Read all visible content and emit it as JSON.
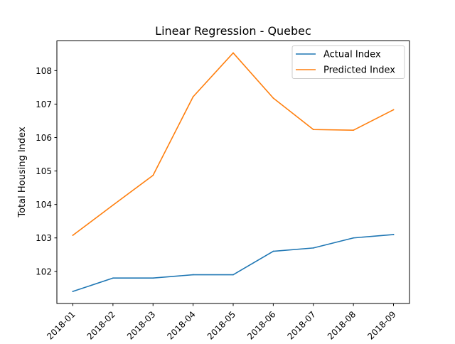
{
  "chart_data": {
    "type": "line",
    "title": "Linear Regression - Quebec",
    "xlabel": "",
    "ylabel": "Total Housing Index",
    "categories": [
      "2018-01",
      "2018-02",
      "2018-03",
      "2018-04",
      "2018-05",
      "2018-06",
      "2018-07",
      "2018-08",
      "2018-09"
    ],
    "series": [
      {
        "name": "Actual Index",
        "color": "#1f77b4",
        "values": [
          101.4,
          101.8,
          101.8,
          101.9,
          101.9,
          102.6,
          102.7,
          103.0,
          103.1
        ]
      },
      {
        "name": "Predicted Index",
        "color": "#ff7f0e",
        "values": [
          103.08,
          103.98,
          104.87,
          107.22,
          108.53,
          107.18,
          106.24,
          106.22,
          106.83
        ]
      }
    ],
    "yticks": [
      102,
      103,
      104,
      105,
      106,
      107,
      108
    ],
    "ylim": [
      101.04,
      108.89
    ],
    "legend": "top-right",
    "grid": false
  }
}
